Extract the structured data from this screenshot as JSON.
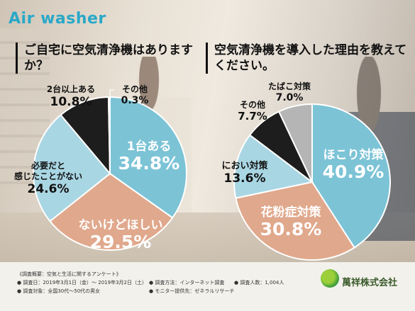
{
  "title": "Air washer",
  "chart_data": [
    {
      "type": "pie",
      "title": "ご自宅に空気清浄機はありますか？",
      "slices": [
        {
          "label": "1台ある",
          "value": 34.8,
          "value_text": "34.8%",
          "color": "#7cc3d6"
        },
        {
          "label": "ないけどほしい",
          "value": 29.5,
          "value_text": "29.5%",
          "color": "#e0a88c"
        },
        {
          "label": "必要だと感じたことがない",
          "label_lines": [
            "必要だと",
            "感じたことがない"
          ],
          "value": 24.6,
          "value_text": "24.6%",
          "color": "#a9d6e3"
        },
        {
          "label": "2台以上ある",
          "value": 10.8,
          "value_text": "10.8%",
          "color": "#1d1d1d"
        },
        {
          "label": "その他",
          "value": 0.3,
          "value_text": "0.3%",
          "color": "#b5b5b5"
        }
      ]
    },
    {
      "type": "pie",
      "title": "空気清浄機を導入した理由を教えてください。",
      "slices": [
        {
          "label": "ほこり対策",
          "value": 40.9,
          "value_text": "40.9%",
          "color": "#7cc3d6"
        },
        {
          "label": "花粉症対策",
          "value": 30.8,
          "value_text": "30.8%",
          "color": "#e0a88c"
        },
        {
          "label": "におい対策",
          "value": 13.6,
          "value_text": "13.6%",
          "color": "#a9d6e3"
        },
        {
          "label": "その他",
          "value": 7.7,
          "value_text": "7.7%",
          "color": "#1d1d1d"
        },
        {
          "label": "たばこ対策",
          "value": 7.0,
          "value_text": "7.0%",
          "color": "#b5b5b5"
        }
      ]
    }
  ],
  "footer": {
    "survey_title": "《調査概要：空気と生活に関するアンケート》",
    "date": "● 調査日：2019年3月1日（金）～ 2019年3月2日（土）",
    "target": "● 調査対象：全国30代～50代の男女",
    "method": "● 調査方法：インターネット調査",
    "count": "● 調査人数：1,004人",
    "provider": "● モニター提供先：ゼネラルリサーチ"
  },
  "logo_text": "萬祥株式会社"
}
